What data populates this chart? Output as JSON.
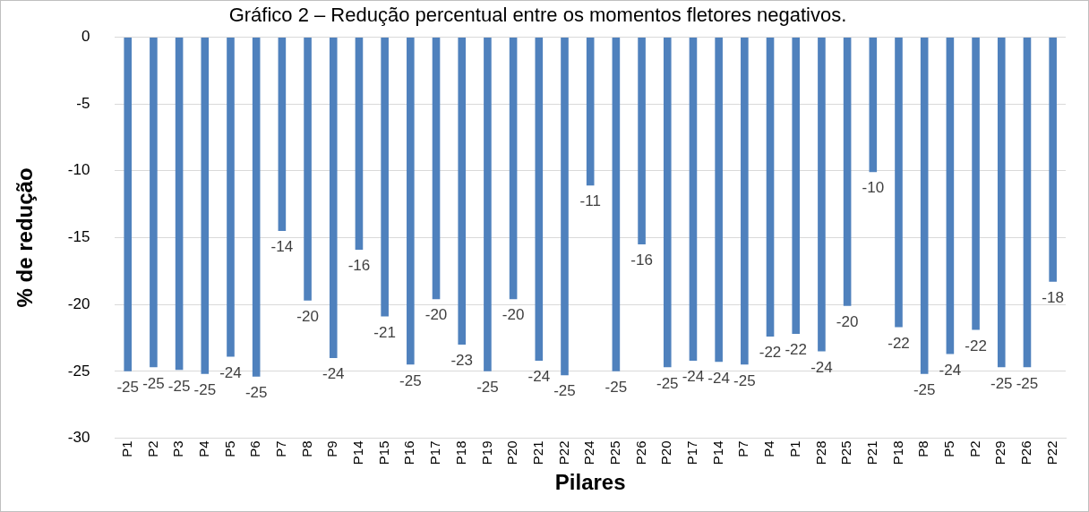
{
  "chart_data": {
    "type": "bar",
    "title": "Gráfico 2 – Redução percentual entre os momentos fletores negativos.",
    "xlabel": "Pilares",
    "ylabel": "% de redução",
    "categories": [
      "P1",
      "P2",
      "P3",
      "P4",
      "P5",
      "P6",
      "P7",
      "P8",
      "P9",
      "P14",
      "P15",
      "P16",
      "P17",
      "P18",
      "P19",
      "P20",
      "P21",
      "P22",
      "P24",
      "P25",
      "P26",
      "P20",
      "P17",
      "P14",
      "P7",
      "P4",
      "P1",
      "P28",
      "P25",
      "P21",
      "P18",
      "P8",
      "P5",
      "P2",
      "P29",
      "P26",
      "P22"
    ],
    "values": [
      -25.0,
      -24.7,
      -24.9,
      -25.2,
      -23.9,
      -25.4,
      -14.5,
      -19.7,
      -24.0,
      -15.9,
      -20.9,
      -24.5,
      -19.6,
      -23.0,
      -25.0,
      -19.6,
      -24.2,
      -25.3,
      -11.1,
      -25.0,
      -15.5,
      -24.7,
      -24.2,
      -24.3,
      -24.5,
      -22.4,
      -22.2,
      -23.5,
      -20.1,
      -10.1,
      -21.7,
      -25.2,
      -23.7,
      -21.9,
      -24.7,
      -24.7,
      -18.3
    ],
    "value_labels": [
      "-25",
      "-25",
      "-25",
      "-25",
      "-24",
      "-25",
      "-14",
      "-20",
      "-24",
      "-16",
      "-21",
      "-25",
      "-20",
      "-23",
      "-25",
      "-20",
      "-24",
      "-25",
      "-11",
      "-25",
      "-16",
      "-25",
      "-24",
      "-24",
      "-25",
      "-22",
      "-22",
      "-24",
      "-20",
      "-10",
      "-22",
      "-25",
      "-24",
      "-22",
      "-25",
      "-25",
      "-18"
    ],
    "color": "#4f81bd",
    "ylim": [
      -30,
      0
    ],
    "yticks": [
      -30,
      -25,
      -20,
      -15,
      -10,
      -5,
      0
    ],
    "grid": "y",
    "legend": false
  }
}
